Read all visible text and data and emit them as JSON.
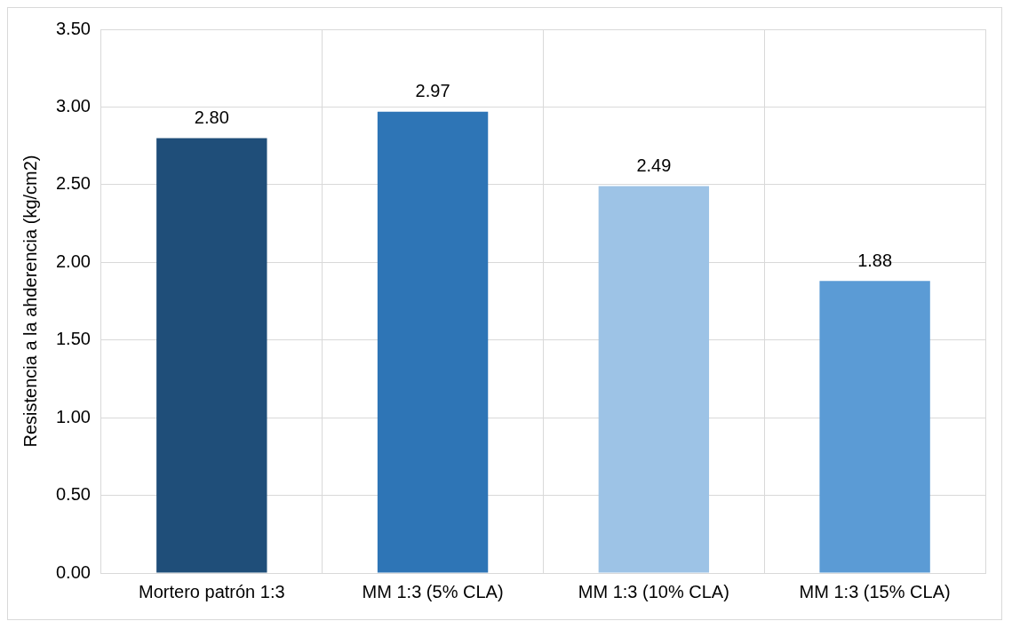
{
  "chart_data": {
    "type": "bar",
    "ylabel": "Resistencia a la ahderencia (kg/cm2)",
    "categories": [
      "Mortero patrón 1:3",
      "MM 1:3 (5% CLA)",
      "MM 1:3 (10% CLA)",
      "MM 1:3 (15% CLA)"
    ],
    "values": [
      2.8,
      2.97,
      2.49,
      1.88
    ],
    "colors": [
      "#1f4e79",
      "#2e75b6",
      "#9dc3e6",
      "#5b9bd5"
    ],
    "value_labels": [
      "2.80",
      "2.97",
      "2.49",
      "1.88"
    ],
    "ylim": [
      0,
      3.5
    ],
    "yticks": [
      {
        "value": 0,
        "label": "0.00"
      },
      {
        "value": 0.5,
        "label": "0.50"
      },
      {
        "value": 1,
        "label": "1.00"
      },
      {
        "value": 1.5,
        "label": "1.50"
      },
      {
        "value": 2,
        "label": "2.00"
      },
      {
        "value": 2.5,
        "label": "2.50"
      },
      {
        "value": 3,
        "label": "3.00"
      },
      {
        "value": 3.5,
        "label": "3.50"
      }
    ],
    "grid": true,
    "legend": false
  }
}
